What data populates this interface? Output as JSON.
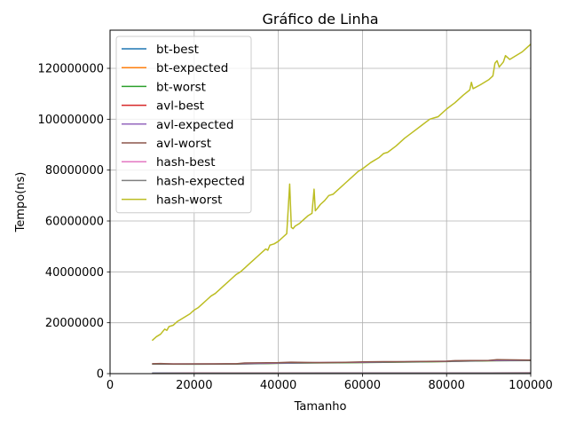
{
  "chart_data": {
    "type": "line",
    "title": "Gráfico de Linha",
    "xlabel": "Tamanho",
    "ylabel": "Tempo(ns)",
    "xlim": [
      0,
      100000
    ],
    "ylim": [
      0,
      135000000
    ],
    "xticks": [
      0,
      20000,
      40000,
      60000,
      80000,
      100000
    ],
    "yticks": [
      0,
      20000000,
      40000000,
      60000000,
      80000000,
      100000000,
      120000000
    ],
    "grid": true,
    "legend_position": "top-left",
    "series": [
      {
        "name": "bt-best",
        "color": "#1f77b4",
        "x": [
          10000,
          20000,
          30000,
          40000,
          50000,
          60000,
          70000,
          80000,
          90000,
          100000
        ],
        "y": [
          200000,
          210000,
          220000,
          230000,
          240000,
          250000,
          260000,
          270000,
          280000,
          290000
        ]
      },
      {
        "name": "bt-expected",
        "color": "#ff7f0e",
        "x": [
          10000,
          20000,
          30000,
          40000,
          50000,
          60000,
          70000,
          80000,
          90000,
          100000
        ],
        "y": [
          3800000,
          3750000,
          3800000,
          4100000,
          4300000,
          4400000,
          4600000,
          4800000,
          5100000,
          5200000
        ]
      },
      {
        "name": "bt-worst",
        "color": "#2ca02c",
        "x": [
          10000,
          20000,
          30000,
          40000,
          50000,
          60000,
          70000,
          80000,
          90000,
          100000
        ],
        "y": [
          3750000,
          3700000,
          3750000,
          4050000,
          4250000,
          4350000,
          4550000,
          4750000,
          5050000,
          5150000
        ]
      },
      {
        "name": "avl-best",
        "color": "#d62728",
        "x": [
          10000,
          20000,
          30000,
          40000,
          50000,
          60000,
          70000,
          80000,
          90000,
          100000
        ],
        "y": [
          150000,
          160000,
          165000,
          170000,
          175000,
          180000,
          185000,
          190000,
          195000,
          200000
        ]
      },
      {
        "name": "avl-expected",
        "color": "#9467bd",
        "x": [
          10000,
          20000,
          30000,
          40000,
          50000,
          60000,
          70000,
          80000,
          90000,
          100000
        ],
        "y": [
          3850000,
          3800000,
          3850000,
          4150000,
          4350000,
          4450000,
          4650000,
          4850000,
          5150000,
          5250000
        ]
      },
      {
        "name": "avl-worst",
        "color": "#8c564b",
        "x": [
          10000,
          12000,
          15000,
          20000,
          25000,
          30000,
          32000,
          40000,
          43000,
          50000,
          55000,
          60000,
          65000,
          70000,
          75000,
          80000,
          82000,
          90000,
          92000,
          100000
        ],
        "y": [
          3900000,
          3950000,
          3800000,
          3850000,
          3850000,
          3900000,
          4200000,
          4300000,
          4500000,
          4300000,
          4400000,
          4600000,
          4700000,
          4700000,
          4800000,
          4900000,
          5100000,
          5200000,
          5500000,
          5300000
        ]
      },
      {
        "name": "hash-best",
        "color": "#e377c2",
        "x": [
          10000,
          20000,
          30000,
          40000,
          50000,
          60000,
          70000,
          80000,
          90000,
          100000
        ],
        "y": [
          80000,
          82000,
          84000,
          86000,
          88000,
          90000,
          92000,
          94000,
          96000,
          98000
        ]
      },
      {
        "name": "hash-expected",
        "color": "#7f7f7f",
        "x": [
          10000,
          20000,
          30000,
          40000,
          50000,
          60000,
          70000,
          80000,
          90000,
          100000
        ],
        "y": [
          100000,
          105000,
          110000,
          115000,
          120000,
          125000,
          130000,
          135000,
          140000,
          145000
        ]
      },
      {
        "name": "hash-worst",
        "color": "#bcbd22",
        "x": [
          10000,
          11000,
          12000,
          13000,
          13500,
          14000,
          15000,
          16000,
          17000,
          18000,
          19000,
          20000,
          21000,
          22000,
          23000,
          24000,
          25000,
          26000,
          27000,
          28000,
          29000,
          30000,
          31000,
          32000,
          33000,
          34000,
          35000,
          36000,
          37000,
          37500,
          38000,
          39000,
          40000,
          41000,
          42000,
          42700,
          43100,
          43500,
          44000,
          45000,
          46000,
          47000,
          48000,
          48500,
          48800,
          49300,
          50000,
          51000,
          52000,
          53000,
          54000,
          55000,
          56000,
          57000,
          58000,
          59000,
          60000,
          62000,
          64000,
          65000,
          66000,
          68000,
          70000,
          72000,
          74000,
          76000,
          77000,
          78000,
          80000,
          82000,
          84000,
          85500,
          85900,
          86300,
          88000,
          90000,
          91000,
          91500,
          92000,
          92500,
          93000,
          93500,
          94000,
          95000,
          96000,
          97000,
          98000,
          99000,
          100000
        ],
        "y": [
          13000000,
          14500000,
          15500000,
          17500000,
          17000000,
          18500000,
          19000000,
          20500000,
          21500000,
          22500000,
          23500000,
          25000000,
          26000000,
          27500000,
          29000000,
          30500000,
          31500000,
          33000000,
          34500000,
          36000000,
          37500000,
          39000000,
          40000000,
          41500000,
          43000000,
          44500000,
          46000000,
          47500000,
          49000000,
          48500000,
          50500000,
          51000000,
          52000000,
          53500000,
          55000000,
          74500000,
          57500000,
          57000000,
          58000000,
          59000000,
          60500000,
          62000000,
          63000000,
          72500000,
          64000000,
          65000000,
          66500000,
          68000000,
          70000000,
          70500000,
          72000000,
          73500000,
          75000000,
          76500000,
          78000000,
          79500000,
          80500000,
          83000000,
          85000000,
          86500000,
          87000000,
          89500000,
          92500000,
          95000000,
          97500000,
          100000000,
          100500000,
          101000000,
          104000000,
          106500000,
          109500000,
          111500000,
          114500000,
          112000000,
          113500000,
          115500000,
          117000000,
          122000000,
          123000000,
          120500000,
          121500000,
          122500000,
          125000000,
          123500000,
          124500000,
          125500000,
          126500000,
          128000000,
          129500000
        ]
      }
    ]
  }
}
